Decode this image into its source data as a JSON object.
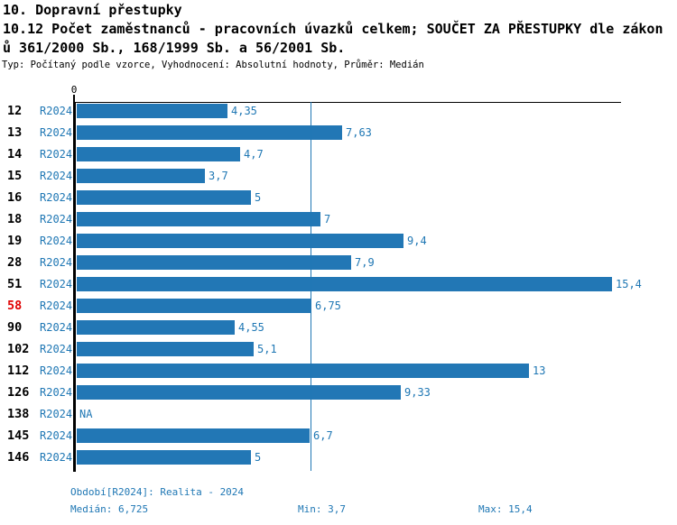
{
  "header": {
    "line1": "10. Dopravní přestupky",
    "line2": "10.12 Počet zaměstnanců - pracovních úvazků celkem; SOUČET ZA PŘESTUPKY dle zákon",
    "line3": "ů 361/2000 Sb., 168/1999 Sb. a 56/2001 Sb.",
    "subtitle": "Typ: Počítaný podle vzorce, Vyhodnocení: Absolutní hodnoty, Průměr: Medián"
  },
  "chart_data": {
    "type": "bar",
    "orientation": "horizontal",
    "title": "10.12 Počet zaměstnanců - pracovních úvazků celkem; SOUČET ZA PŘESTUPKY dle zákonů 361/2000 Sb., 168/1999 Sb. a 56/2001 Sb.",
    "series_label": "R2024",
    "origin_tick_label": "0",
    "categories": [
      "12",
      "13",
      "14",
      "15",
      "16",
      "18",
      "19",
      "28",
      "51",
      "58",
      "90",
      "102",
      "112",
      "126",
      "138",
      "145",
      "146"
    ],
    "values": [
      4.35,
      7.63,
      4.7,
      3.7,
      5,
      7,
      9.4,
      7.9,
      15.4,
      6.75,
      4.55,
      5.1,
      13,
      9.33,
      null,
      6.7,
      5
    ],
    "value_labels": [
      "4,35",
      "7,63",
      "4,7",
      "3,7",
      "5",
      "7",
      "9,4",
      "7,9",
      "15,4",
      "6,75",
      "4,55",
      "5,1",
      "13",
      "9,33",
      "NA",
      "6,7",
      "5"
    ],
    "highlight_category": "58",
    "bar_color": "#2277b5",
    "value_label_color": "#1f77b4",
    "highlight_color": "#e00000",
    "median_line_value": 6.725,
    "xlim": [
      0,
      15.75
    ],
    "grid": false,
    "legend_position": "none"
  },
  "footer": {
    "period": "Období[R2024]: Realita - 2024",
    "median": "Medián: 6,725",
    "min": "Min: 3,7",
    "max": "Max: 15,4"
  }
}
